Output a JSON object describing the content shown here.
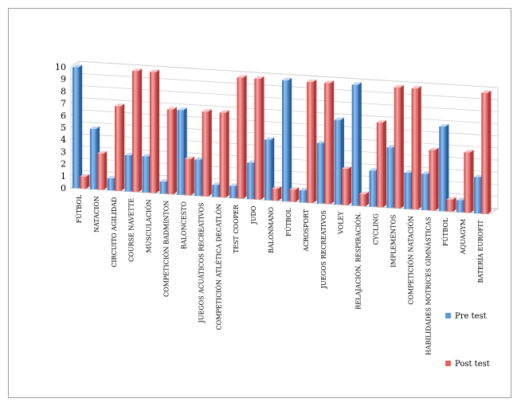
{
  "chart_data": {
    "type": "bar",
    "title": "",
    "xlabel": "",
    "ylabel": "",
    "ylim": [
      0,
      10
    ],
    "yticks": [
      0,
      1,
      2,
      3,
      4,
      5,
      6,
      7,
      8,
      9,
      10
    ],
    "grid": true,
    "legend_position": "right",
    "categories": [
      "FÚTBOL",
      "NATACIÓN",
      "CIRCUITO AGILIDAD",
      "COURSE NAVETTE",
      "MUSCULACIÓN",
      "COMPETICIÓN BADMINTON",
      "BALONCESTO",
      "JUEGOS ACUÁTICOS RECREATIVOS",
      "COMPETICIÓN ATLÉTICA DECATLÓN",
      "TEST COOPER",
      "JUDO",
      "BALONMANO",
      "FÚTBOL",
      "ACROSPORT",
      "JUEGOS RECREATIVOS",
      "VOLEY",
      "RELAJACIÓN, RESPIRACIÓN.",
      "CYCLING",
      "IMPLEMENTOS",
      "COMPETICIÓN NATACIÓN",
      "HABILIDADES MOTRICES GIMNÁSTICAS",
      "FÚTBOL",
      "AQUAGYM",
      "BATERÍA EUROFIT"
    ],
    "series": [
      {
        "name": "Pre test",
        "color": "#5b9bd5",
        "values": [
          10,
          5,
          1,
          3,
          3,
          1,
          7,
          3,
          1,
          1,
          3,
          5,
          10,
          1,
          5,
          7,
          10,
          3,
          5,
          3,
          3,
          7,
          1,
          3
        ]
      },
      {
        "name": "Post test",
        "color": "#e8605f",
        "values": [
          1,
          3,
          7,
          10,
          10,
          7,
          3,
          7,
          7,
          10,
          10,
          1,
          1,
          10,
          10,
          3,
          1,
          7,
          10,
          10,
          5,
          1,
          5,
          10
        ]
      }
    ]
  }
}
